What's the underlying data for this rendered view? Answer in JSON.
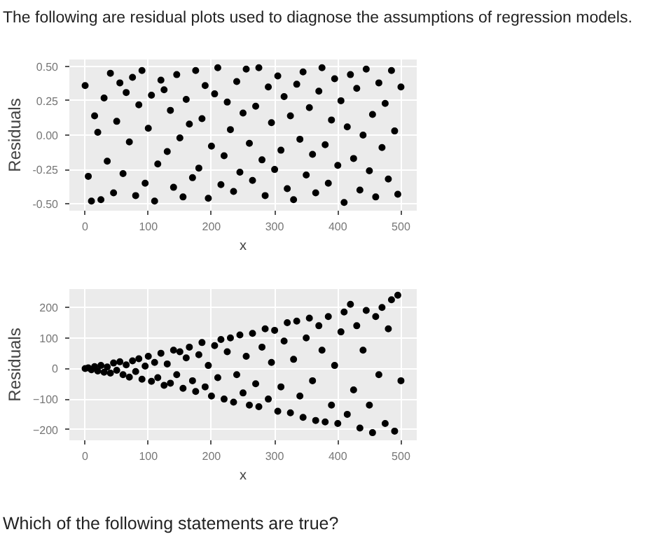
{
  "chart_data": [
    {
      "type": "scatter",
      "title": "The following are residual plots used to diagnose the assumptions of regression models.",
      "xlabel": "x",
      "ylabel": "Residuals",
      "marker": "circle",
      "grid": true,
      "xlim": [
        -25,
        525
      ],
      "xticks": [
        0,
        100,
        200,
        300,
        400,
        500
      ],
      "ylim": [
        -0.55,
        0.55
      ],
      "yticks": [
        {
          "value": -0.5,
          "label": "-0.50"
        },
        {
          "value": -0.25,
          "label": "-0.25"
        },
        {
          "value": 0,
          "label": "0.00"
        },
        {
          "value": 0.25,
          "label": "0.25"
        },
        {
          "value": 0.5,
          "label": "0.50"
        }
      ],
      "x": [
        0,
        5,
        10,
        15,
        20,
        25,
        30,
        35,
        40,
        45,
        50,
        55,
        60,
        65,
        70,
        75,
        80,
        85,
        90,
        95,
        100,
        105,
        110,
        115,
        120,
        125,
        130,
        135,
        140,
        145,
        150,
        155,
        160,
        165,
        170,
        175,
        180,
        185,
        190,
        195,
        200,
        205,
        210,
        215,
        220,
        225,
        230,
        235,
        240,
        245,
        250,
        255,
        260,
        265,
        270,
        275,
        280,
        285,
        290,
        295,
        300,
        305,
        310,
        315,
        320,
        325,
        330,
        335,
        340,
        345,
        350,
        355,
        360,
        365,
        370,
        375,
        380,
        385,
        390,
        395,
        400,
        405,
        410,
        415,
        420,
        425,
        430,
        435,
        440,
        445,
        450,
        455,
        460,
        465,
        470,
        475,
        480,
        485,
        490,
        495,
        500
      ],
      "series": [
        {
          "color": "#000000",
          "values": [
            0.36,
            -0.3,
            -0.48,
            0.14,
            0.02,
            -0.47,
            0.27,
            -0.19,
            0.45,
            -0.42,
            0.1,
            0.38,
            -0.28,
            0.31,
            -0.05,
            0.42,
            -0.44,
            0.22,
            0.47,
            -0.35,
            0.05,
            0.29,
            -0.48,
            -0.21,
            0.4,
            0.33,
            -0.12,
            0.18,
            -0.38,
            0.44,
            -0.02,
            -0.45,
            0.26,
            0.08,
            -0.31,
            0.47,
            -0.24,
            0.12,
            0.36,
            -0.46,
            -0.08,
            0.3,
            0.49,
            -0.36,
            -0.15,
            0.24,
            0.04,
            -0.41,
            0.39,
            -0.27,
            0.16,
            0.48,
            -0.06,
            -0.33,
            0.21,
            0.49,
            -0.18,
            -0.44,
            0.35,
            0.09,
            -0.25,
            0.43,
            -0.11,
            0.28,
            -0.39,
            0.14,
            -0.47,
            0.37,
            -0.03,
            0.46,
            -0.29,
            0.2,
            -0.14,
            -0.42,
            0.32,
            0.49,
            -0.07,
            -0.35,
            0.11,
            0.41,
            -0.22,
            0.25,
            -0.49,
            0.06,
            0.44,
            -0.17,
            0.34,
            -0.4,
            0.0,
            0.48,
            -0.26,
            0.15,
            -0.45,
            0.38,
            -0.09,
            0.23,
            -0.32,
            0.47,
            0.03,
            -0.43,
            0.35
          ]
        }
      ]
    },
    {
      "type": "scatter",
      "xlabel": "x",
      "ylabel": "Residuals",
      "marker": "circle",
      "grid": true,
      "xlim": [
        -25,
        525
      ],
      "xticks": [
        0,
        100,
        200,
        300,
        400,
        500
      ],
      "ylim": [
        -235,
        260
      ],
      "yticks": [
        -200,
        -100,
        0,
        100,
        200
      ],
      "annotations": [
        "Which of the following statements are true?"
      ],
      "x": [
        0,
        5,
        10,
        15,
        20,
        25,
        30,
        35,
        40,
        45,
        50,
        55,
        60,
        65,
        70,
        75,
        80,
        85,
        90,
        95,
        100,
        105,
        110,
        115,
        120,
        125,
        130,
        135,
        140,
        145,
        150,
        155,
        160,
        165,
        170,
        175,
        180,
        185,
        190,
        195,
        200,
        205,
        210,
        215,
        220,
        225,
        230,
        235,
        240,
        245,
        250,
        255,
        260,
        265,
        270,
        275,
        280,
        285,
        290,
        295,
        300,
        305,
        310,
        315,
        320,
        325,
        330,
        335,
        340,
        345,
        350,
        355,
        360,
        365,
        370,
        375,
        380,
        385,
        390,
        395,
        400,
        405,
        410,
        415,
        420,
        425,
        430,
        435,
        440,
        445,
        450,
        455,
        460,
        465,
        470,
        475,
        480,
        485,
        490,
        495,
        500
      ],
      "series": [
        {
          "color": "#000000",
          "values": [
            0,
            2,
            -4,
            6,
            -8,
            10,
            -12,
            5,
            -15,
            18,
            -6,
            22,
            -20,
            12,
            -28,
            25,
            -10,
            32,
            -35,
            8,
            40,
            -42,
            20,
            -30,
            50,
            -55,
            15,
            -48,
            60,
            -20,
            55,
            -65,
            35,
            70,
            -40,
            -75,
            45,
            85,
            -60,
            10,
            -90,
            75,
            -30,
            95,
            -100,
            55,
            100,
            -110,
            -20,
            110,
            -80,
            40,
            -120,
            115,
            -50,
            -125,
            70,
            130,
            -100,
            20,
            125,
            -140,
            -60,
            90,
            150,
            -145,
            30,
            155,
            -90,
            -160,
            100,
            165,
            -40,
            -170,
            140,
            60,
            -175,
            170,
            -120,
            10,
            -180,
            120,
            185,
            -150,
            210,
            -70,
            140,
            -195,
            60,
            190,
            -120,
            -210,
            170,
            -20,
            200,
            -180,
            130,
            225,
            -205,
            240,
            -40
          ]
        }
      ]
    }
  ]
}
